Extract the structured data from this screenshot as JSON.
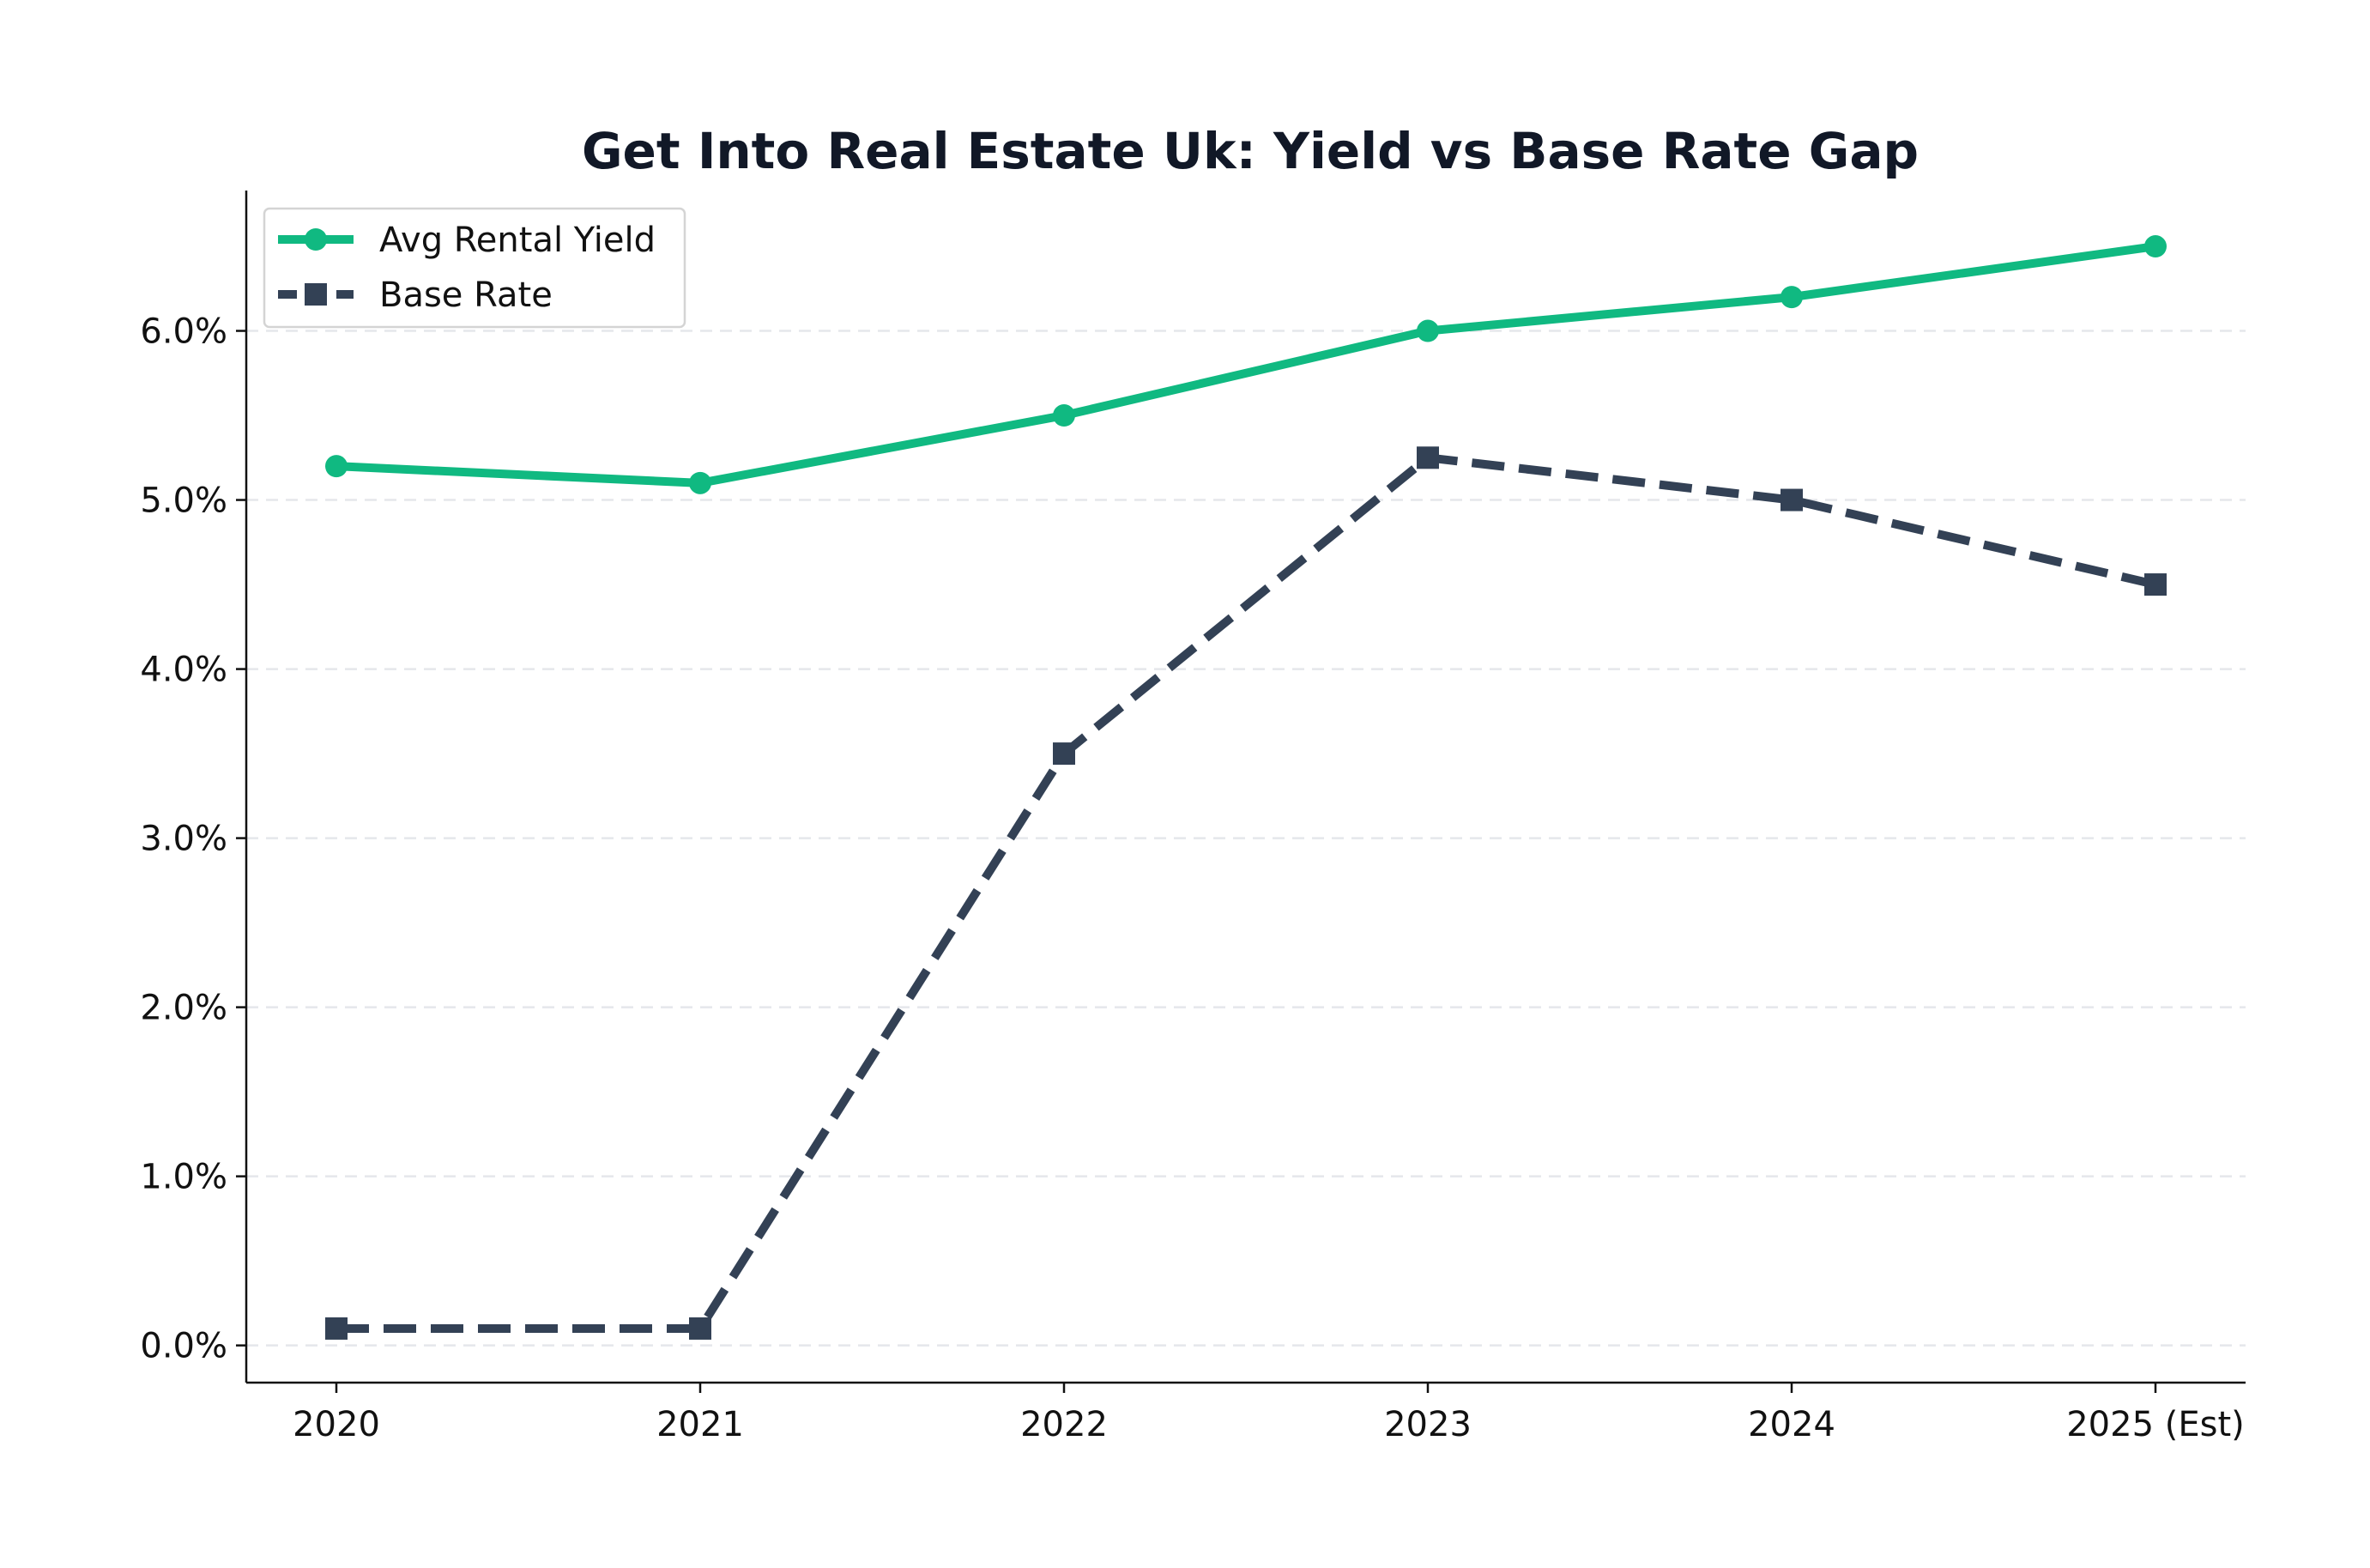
{
  "chart_data": {
    "type": "line",
    "title": "Get Into Real Estate Uk: Yield vs Base Rate Gap",
    "xlabel": "",
    "ylabel": "",
    "categories": [
      "2020",
      "2021",
      "2022",
      "2023",
      "2024",
      "2025 (Est)"
    ],
    "series": [
      {
        "name": "Avg Rental Yield",
        "values": [
          5.2,
          5.1,
          5.5,
          6.0,
          6.2,
          6.5
        ],
        "color": "#10b981",
        "line_style": "solid",
        "marker": "circle"
      },
      {
        "name": "Base Rate",
        "values": [
          0.1,
          0.1,
          3.5,
          5.25,
          5.0,
          4.5
        ],
        "color": "#334155",
        "line_style": "dashed",
        "marker": "square"
      }
    ],
    "ylim": [
      -0.22,
      6.83
    ],
    "y_ticks": [
      0,
      1,
      2,
      3,
      4,
      5,
      6
    ],
    "y_tick_format": "percent_1dp",
    "grid": {
      "horizontal": true,
      "vertical": false,
      "style": "dashed",
      "color": "#e5e7eb"
    },
    "legend_position": "top-left"
  }
}
